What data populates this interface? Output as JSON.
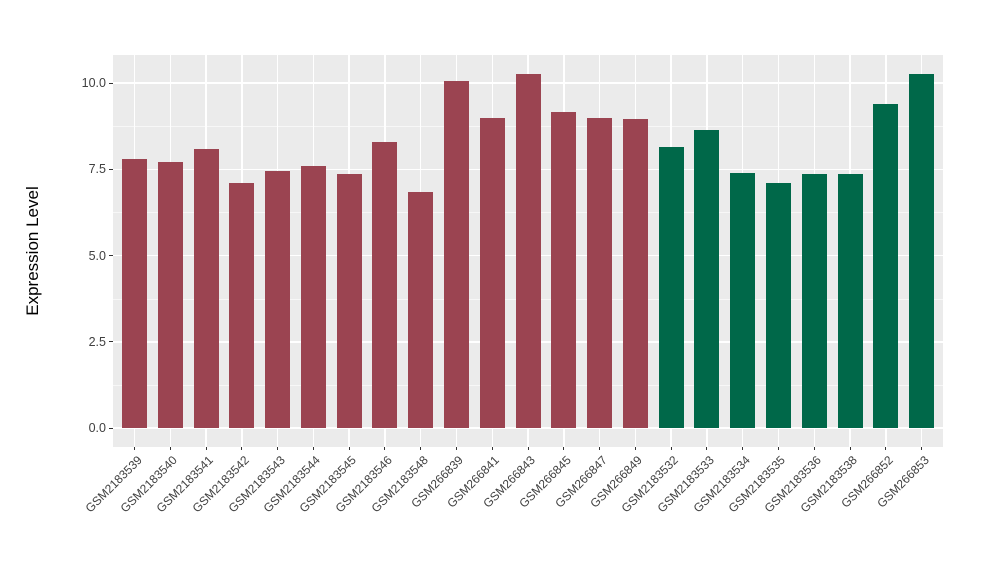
{
  "chart_data": {
    "type": "bar",
    "title": "",
    "xlabel": "",
    "ylabel": "Expression Level",
    "categories": [
      "GSM2183539",
      "GSM2183540",
      "GSM2183541",
      "GSM2183542",
      "GSM2183543",
      "GSM2183544",
      "GSM2183545",
      "GSM2183546",
      "GSM2183548",
      "GSM266839",
      "GSM266841",
      "GSM266843",
      "GSM266845",
      "GSM266847",
      "GSM266849",
      "GSM2183532",
      "GSM2183533",
      "GSM2183534",
      "GSM2183535",
      "GSM2183536",
      "GSM2183538",
      "GSM266852",
      "GSM266853"
    ],
    "values": [
      7.8,
      7.7,
      8.1,
      7.1,
      7.45,
      7.6,
      7.35,
      8.3,
      6.85,
      10.05,
      9.0,
      10.25,
      9.15,
      9.0,
      8.95,
      8.15,
      8.65,
      7.4,
      7.1,
      7.35,
      7.35,
      9.4,
      10.25
    ],
    "bar_colors": [
      "#9B4451",
      "#9B4451",
      "#9B4451",
      "#9B4451",
      "#9B4451",
      "#9B4451",
      "#9B4451",
      "#9B4451",
      "#9B4451",
      "#9B4451",
      "#9B4451",
      "#9B4451",
      "#9B4451",
      "#9B4451",
      "#9B4451",
      "#006849",
      "#006849",
      "#006849",
      "#006849",
      "#006849",
      "#006849",
      "#006849",
      "#006849"
    ],
    "group_colors": {
      "maroon_group": "#9B4451",
      "green_group": "#006849"
    },
    "ytick_labels": [
      "0.0",
      "2.5",
      "5.0",
      "7.5",
      "10.0"
    ],
    "yticks": [
      0,
      2.5,
      5,
      7.5,
      10
    ],
    "minor_yticks": [
      1.25,
      3.75,
      6.25,
      8.75
    ],
    "ylim": [
      -0.55,
      10.81
    ],
    "x_label_angle": 45,
    "legend": "none",
    "grid": "horizontal major+minor, vertical major at category centers",
    "panel_background": "#EBEBEB",
    "gridline_color": "#FFFFFF",
    "axis_text_color": "#404040",
    "axis_title_color": "#000000",
    "tick_mark_color": "#333333"
  }
}
